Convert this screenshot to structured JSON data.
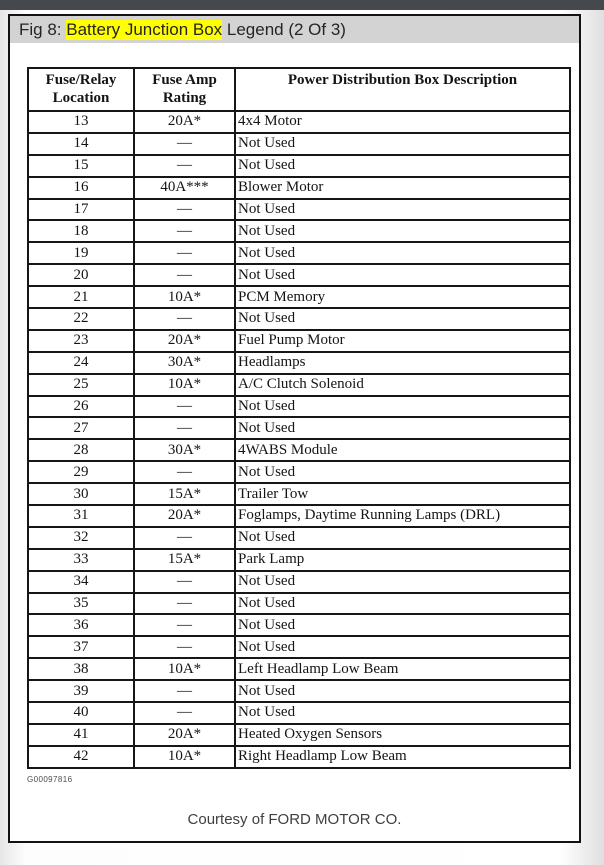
{
  "page": {
    "top_bar_color": "#45484c",
    "band_color": "#d3d3d3",
    "highlight_color": "#ffff00"
  },
  "header": {
    "title_prefix": "Fig 8: ",
    "title_highlight": "Battery Junction Box",
    "title_suffix": " Legend (2 Of 3)"
  },
  "table": {
    "columns": {
      "location": "Fuse/Relay Location",
      "amp": "Fuse Amp Rating",
      "desc": "Power Distribution Box Description"
    },
    "rows": [
      {
        "location": "13",
        "amp": "20A*",
        "desc": "4x4 Motor"
      },
      {
        "location": "14",
        "amp": "—",
        "desc": "Not Used"
      },
      {
        "location": "15",
        "amp": "—",
        "desc": "Not Used"
      },
      {
        "location": "16",
        "amp": "40A***",
        "desc": "Blower Motor"
      },
      {
        "location": "17",
        "amp": "—",
        "desc": "Not Used"
      },
      {
        "location": "18",
        "amp": "—",
        "desc": "Not Used"
      },
      {
        "location": "19",
        "amp": "—",
        "desc": "Not Used"
      },
      {
        "location": "20",
        "amp": "—",
        "desc": "Not Used"
      },
      {
        "location": "21",
        "amp": "10A*",
        "desc": "PCM Memory"
      },
      {
        "location": "22",
        "amp": "—",
        "desc": "Not Used"
      },
      {
        "location": "23",
        "amp": "20A*",
        "desc": "Fuel Pump Motor"
      },
      {
        "location": "24",
        "amp": "30A*",
        "desc": "Headlamps"
      },
      {
        "location": "25",
        "amp": "10A*",
        "desc": "A/C Clutch Solenoid"
      },
      {
        "location": "26",
        "amp": "—",
        "desc": "Not Used"
      },
      {
        "location": "27",
        "amp": "—",
        "desc": "Not Used"
      },
      {
        "location": "28",
        "amp": "30A*",
        "desc": "4WABS Module"
      },
      {
        "location": "29",
        "amp": "—",
        "desc": "Not Used"
      },
      {
        "location": "30",
        "amp": "15A*",
        "desc": "Trailer Tow"
      },
      {
        "location": "31",
        "amp": "20A*",
        "desc": "Foglamps, Daytime Running Lamps (DRL)"
      },
      {
        "location": "32",
        "amp": "—",
        "desc": "Not Used"
      },
      {
        "location": "33",
        "amp": "15A*",
        "desc": "Park Lamp"
      },
      {
        "location": "34",
        "amp": "—",
        "desc": "Not Used"
      },
      {
        "location": "35",
        "amp": "—",
        "desc": "Not Used"
      },
      {
        "location": "36",
        "amp": "—",
        "desc": "Not Used"
      },
      {
        "location": "37",
        "amp": "—",
        "desc": "Not Used"
      },
      {
        "location": "38",
        "amp": "10A*",
        "desc": "Left Headlamp Low Beam"
      },
      {
        "location": "39",
        "amp": "—",
        "desc": "Not Used"
      },
      {
        "location": "40",
        "amp": "—",
        "desc": "Not Used"
      },
      {
        "location": "41",
        "amp": "20A*",
        "desc": "Heated Oxygen Sensors"
      },
      {
        "location": "42",
        "amp": "10A*",
        "desc": "Right Headlamp Low Beam"
      }
    ]
  },
  "footer": {
    "figure_id": "G00097816",
    "courtesy": "Courtesy of FORD MOTOR CO."
  }
}
